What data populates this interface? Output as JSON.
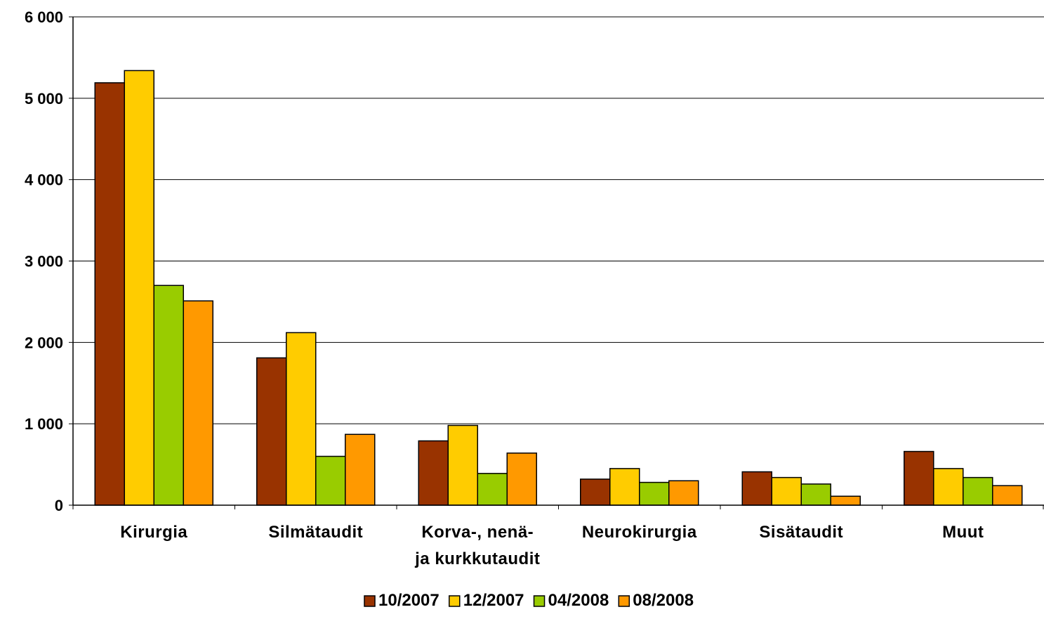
{
  "chart_data": {
    "type": "bar",
    "title": "",
    "xlabel": "",
    "ylabel": "",
    "ylim": [
      0,
      6000
    ],
    "yticks": [
      0,
      1000,
      2000,
      3000,
      4000,
      5000,
      6000
    ],
    "ytick_labels": [
      "0",
      "1 000",
      "2 000",
      "3 000",
      "4 000",
      "5 000",
      "6 000"
    ],
    "grid": true,
    "legend_position": "bottom",
    "categories": [
      [
        "Kirurgia"
      ],
      [
        "Silmätaudit"
      ],
      [
        "Korva-, nenä-",
        "ja kurkkutaudit"
      ],
      [
        "Neurokirurgia"
      ],
      [
        "Sisätaudit"
      ],
      [
        "Muut"
      ]
    ],
    "series": [
      {
        "name": "10/2007",
        "color": "#993300",
        "values": [
          5190,
          1810,
          790,
          320,
          410,
          660
        ]
      },
      {
        "name": "12/2007",
        "color": "#FFCC00",
        "values": [
          5340,
          2120,
          980,
          450,
          340,
          450
        ]
      },
      {
        "name": "04/2008",
        "color": "#99CC00",
        "values": [
          2700,
          600,
          390,
          280,
          260,
          340
        ]
      },
      {
        "name": "08/2008",
        "color": "#FF9900",
        "values": [
          2510,
          870,
          640,
          300,
          110,
          240
        ]
      }
    ]
  }
}
